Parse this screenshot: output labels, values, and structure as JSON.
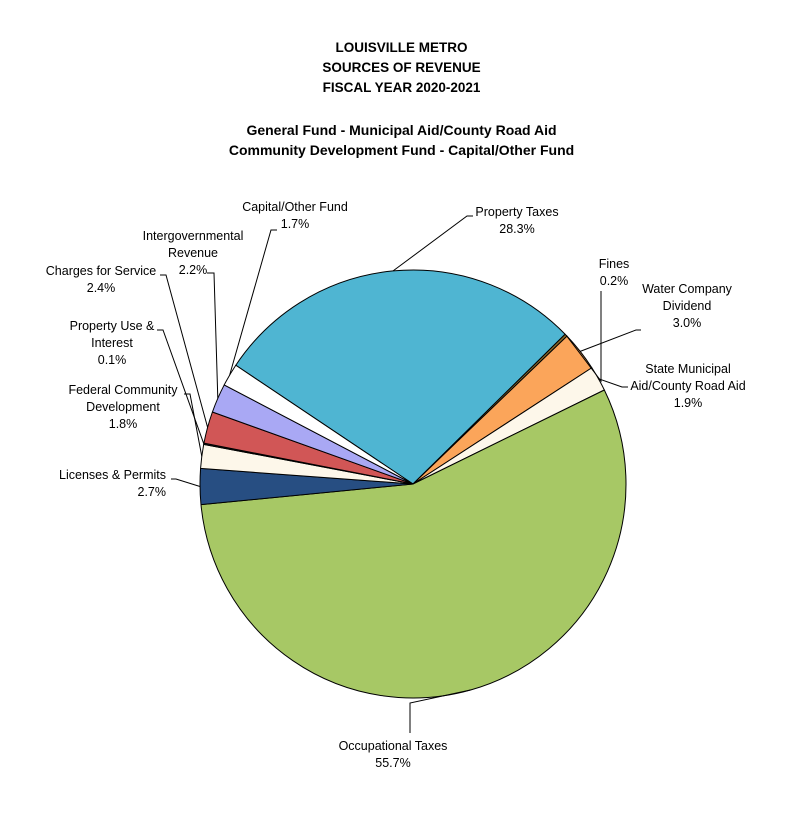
{
  "chart_data": {
    "type": "pie",
    "title": [
      "LOUISVILLE  METRO",
      "SOURCES OF REVENUE",
      "FISCAL YEAR 2020-2021"
    ],
    "subtitle": [
      "General Fund - Municipal Aid/County Road Aid",
      "Community Development Fund - Capital/Other Fund"
    ],
    "slices": [
      {
        "id": "property-taxes",
        "label": [
          "Property Taxes"
        ],
        "value_label": "28.3%",
        "value": 28.3,
        "color": "#4fb5d2"
      },
      {
        "id": "fines",
        "label": [
          "Fines"
        ],
        "value_label": "0.2%",
        "value": 0.2,
        "color": "#8a6a2a"
      },
      {
        "id": "water-company-dividend",
        "label": [
          "Water Company",
          "Dividend"
        ],
        "value_label": "3.0%",
        "value": 3.0,
        "color": "#fba55a"
      },
      {
        "id": "state-municipal-aid",
        "label": [
          "State Municipal",
          "Aid/County Road Aid"
        ],
        "value_label": "1.9%",
        "value": 1.9,
        "color": "#fdf7ea"
      },
      {
        "id": "occupational-taxes",
        "label": [
          "Occupational Taxes"
        ],
        "value_label": "55.7%",
        "value": 55.7,
        "color": "#a7c865"
      },
      {
        "id": "licenses-permits",
        "label": [
          "Licenses & Permits"
        ],
        "value_label": "2.7%",
        "value": 2.7,
        "color": "#274e82"
      },
      {
        "id": "federal-community-development",
        "label": [
          "Federal Community",
          "Development"
        ],
        "value_label": "1.8%",
        "value": 1.8,
        "color": "#fdf7ea"
      },
      {
        "id": "property-use-interest",
        "label": [
          "Property Use &",
          "Interest"
        ],
        "value_label": "0.1%",
        "value": 0.1,
        "color": "#3a3a3a"
      },
      {
        "id": "charges-for-service",
        "label": [
          "Charges for Service"
        ],
        "value_label": "2.4%",
        "value": 2.4,
        "color": "#d15656"
      },
      {
        "id": "intergovernmental-revenue",
        "label": [
          "Intergovernmental",
          "Revenue"
        ],
        "value_label": "2.2%",
        "value": 2.2,
        "color": "#a9a8f4"
      },
      {
        "id": "capital-other-fund",
        "label": [
          "Capital/Other Fund"
        ],
        "value_label": "1.7%",
        "value": 1.7,
        "color": "#ffffff"
      }
    ]
  }
}
